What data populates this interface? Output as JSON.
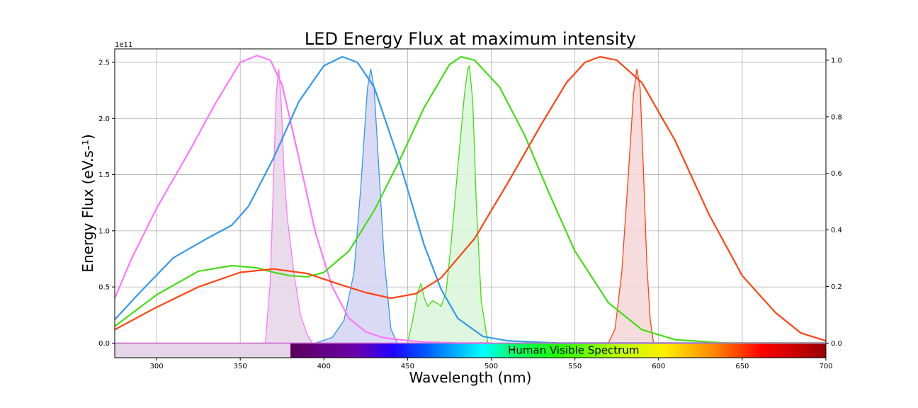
{
  "chart_data": {
    "type": "line",
    "title": "LED Energy Flux at maximum intensity",
    "xlabel": "Wavelength (nm)",
    "ylabel": "Energy Flux (eV.s-¹)",
    "y_offset_label": "1e11",
    "xlim": [
      275,
      700
    ],
    "ylim": [
      -0.13,
      2.62
    ],
    "y2lim": [
      -0.0516,
      1.04
    ],
    "x_ticks": [
      300,
      350,
      400,
      450,
      500,
      550,
      600,
      650,
      700
    ],
    "y_ticks": [
      0.0,
      0.5,
      1.0,
      1.5,
      2.0,
      2.5
    ],
    "y2_ticks": [
      0.0,
      0.2,
      0.4,
      0.6,
      0.8,
      1.0
    ],
    "x_tick_labels": [
      "300",
      "350",
      "400",
      "450",
      "500",
      "550",
      "600",
      "650",
      "700"
    ],
    "y_tick_labels": [
      "0.0",
      "0.5",
      "1.0",
      "1.5",
      "2.0",
      "2.5"
    ],
    "y2_tick_labels": [
      "0.0",
      "0.2",
      "0.4",
      "0.6",
      "0.8",
      "1.0"
    ],
    "grid": true,
    "visible_band": {
      "label": "Human Visible Spectrum",
      "range": [
        380,
        700
      ],
      "uv_region": [
        275,
        380
      ],
      "uv_color": "#e6d5e8"
    },
    "energy_flux_series": [
      {
        "color": "#ff77ff",
        "x": [
          275,
          285,
          300,
          320,
          335,
          350,
          360,
          368,
          375,
          385,
          395,
          405,
          415,
          425,
          435,
          445,
          460,
          480,
          500
        ],
        "y": [
          0.4,
          0.75,
          1.2,
          1.72,
          2.13,
          2.5,
          2.56,
          2.52,
          2.3,
          1.65,
          0.98,
          0.5,
          0.22,
          0.1,
          0.05,
          0.03,
          0.01,
          0.0,
          0.0
        ]
      },
      {
        "color": "#3399ee",
        "x": [
          275,
          290,
          310,
          330,
          345,
          355,
          370,
          385,
          400,
          411,
          420,
          430,
          445,
          460,
          470,
          480,
          495,
          510,
          540,
          700
        ],
        "y": [
          0.21,
          0.45,
          0.76,
          0.93,
          1.05,
          1.22,
          1.65,
          2.15,
          2.47,
          2.55,
          2.5,
          2.28,
          1.62,
          0.87,
          0.48,
          0.22,
          0.06,
          0.02,
          0.0,
          0.0
        ]
      },
      {
        "color": "#44dd11",
        "x": [
          275,
          300,
          325,
          345,
          360,
          370,
          380,
          390,
          400,
          415,
          430,
          445,
          460,
          475,
          482,
          490,
          505,
          520,
          535,
          550,
          570,
          590,
          610,
          640,
          700
        ],
        "y": [
          0.15,
          0.43,
          0.64,
          0.69,
          0.67,
          0.63,
          0.6,
          0.59,
          0.63,
          0.82,
          1.18,
          1.62,
          2.1,
          2.48,
          2.55,
          2.52,
          2.28,
          1.85,
          1.32,
          0.82,
          0.36,
          0.12,
          0.03,
          0.0,
          0.0
        ]
      },
      {
        "color": "#ff4411",
        "x": [
          275,
          300,
          325,
          350,
          370,
          390,
          410,
          425,
          440,
          455,
          470,
          490,
          510,
          530,
          545,
          556,
          565,
          575,
          590,
          610,
          630,
          650,
          670,
          685,
          700
        ],
        "y": [
          0.12,
          0.32,
          0.5,
          0.63,
          0.66,
          0.62,
          0.52,
          0.45,
          0.4,
          0.44,
          0.58,
          0.93,
          1.43,
          1.95,
          2.32,
          2.5,
          2.55,
          2.52,
          2.32,
          1.8,
          1.15,
          0.6,
          0.27,
          0.09,
          0.02
        ]
      }
    ],
    "normalized_spectra": [
      {
        "color": "#ff77ff",
        "fill": "#e6d5e8",
        "x": [
          365,
          368,
          370,
          371.5,
          373,
          374.5,
          376,
          378,
          382,
          386,
          390,
          393
        ],
        "y": [
          0.0,
          0.22,
          0.6,
          0.88,
          0.97,
          0.85,
          0.62,
          0.45,
          0.25,
          0.1,
          0.03,
          0.0
        ]
      },
      {
        "color": "#3399ee",
        "fill": "#d3d4f3",
        "x": [
          395,
          405,
          412,
          418,
          422,
          426,
          428,
          430,
          432,
          436,
          440,
          444
        ],
        "y": [
          0.0,
          0.02,
          0.08,
          0.25,
          0.55,
          0.9,
          0.97,
          0.9,
          0.7,
          0.3,
          0.05,
          0.0
        ]
      },
      {
        "color": "#44dd11",
        "fill": "#d9f5d9",
        "x": [
          450,
          453,
          456,
          458,
          460,
          462,
          465,
          468,
          470,
          473,
          476,
          480,
          484,
          486,
          487,
          489,
          491,
          494,
          498
        ],
        "y": [
          0.0,
          0.08,
          0.18,
          0.21,
          0.16,
          0.13,
          0.15,
          0.14,
          0.13,
          0.18,
          0.35,
          0.62,
          0.88,
          0.97,
          0.98,
          0.85,
          0.5,
          0.15,
          0.0
        ]
      },
      {
        "color": "#ff4411",
        "fill": "#f4d6d6",
        "x": [
          570,
          574,
          578,
          582,
          585,
          587,
          589,
          591,
          593,
          595,
          597
        ],
        "y": [
          0.0,
          0.05,
          0.25,
          0.6,
          0.88,
          0.97,
          0.9,
          0.6,
          0.28,
          0.08,
          0.0
        ]
      }
    ]
  }
}
